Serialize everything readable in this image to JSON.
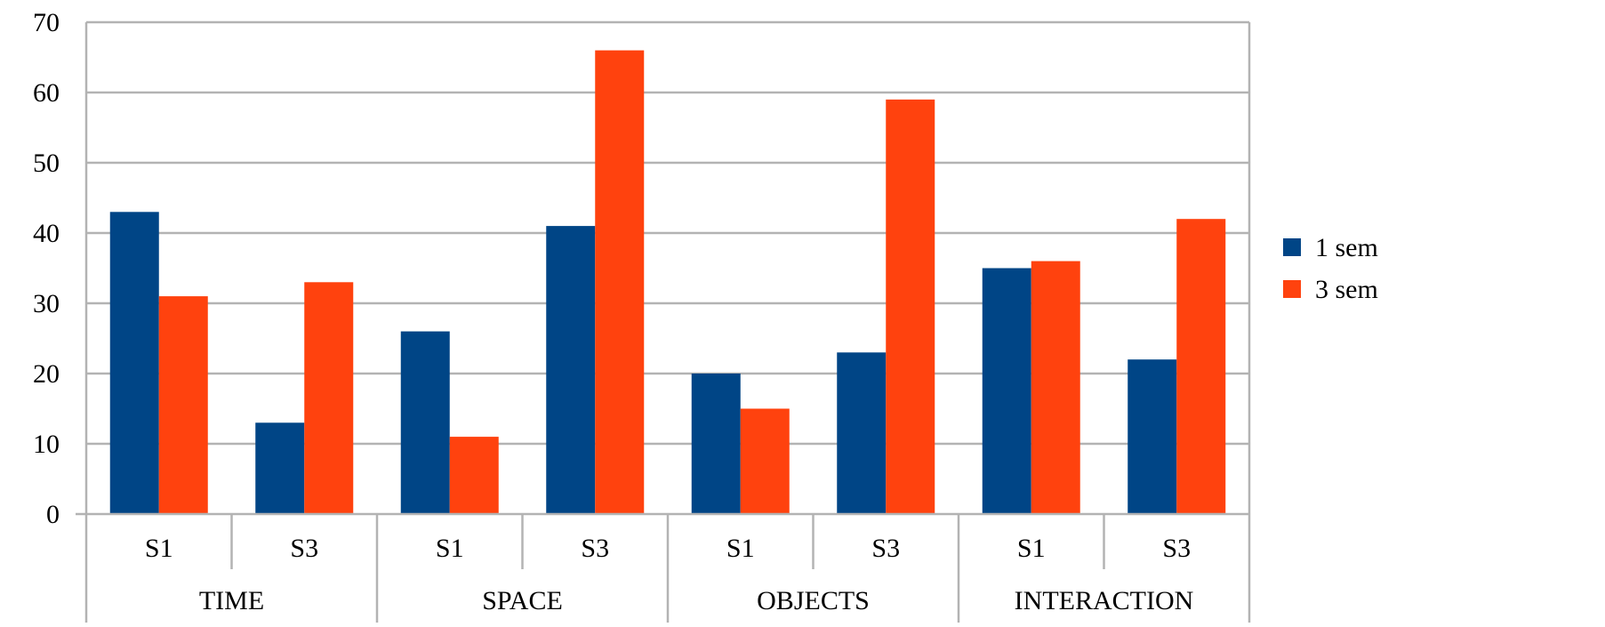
{
  "chart_data": {
    "type": "bar",
    "groups": [
      {
        "label": "TIME",
        "categories": [
          "S1",
          "S3"
        ]
      },
      {
        "label": "SPACE",
        "categories": [
          "S1",
          "S3"
        ]
      },
      {
        "label": "OBJECTS",
        "categories": [
          "S1",
          "S3"
        ]
      },
      {
        "label": "INTERACTION",
        "categories": [
          "S1",
          "S3"
        ]
      }
    ],
    "categories": [
      "S1",
      "S3",
      "S1",
      "S3",
      "S1",
      "S3",
      "S1",
      "S3"
    ],
    "series": [
      {
        "name": "1 sem",
        "color": "#004586",
        "values": [
          43,
          13,
          26,
          41,
          20,
          23,
          35,
          22
        ]
      },
      {
        "name": "3 sem",
        "color": "#ff420e",
        "values": [
          31,
          33,
          11,
          66,
          15,
          59,
          36,
          42
        ]
      }
    ],
    "ylim": [
      0,
      70
    ],
    "yticks": [
      "0",
      "10",
      "20",
      "30",
      "40",
      "50",
      "60",
      "70"
    ],
    "grid": true,
    "legend_position": "right",
    "title": "",
    "xlabel": "",
    "ylabel": ""
  }
}
